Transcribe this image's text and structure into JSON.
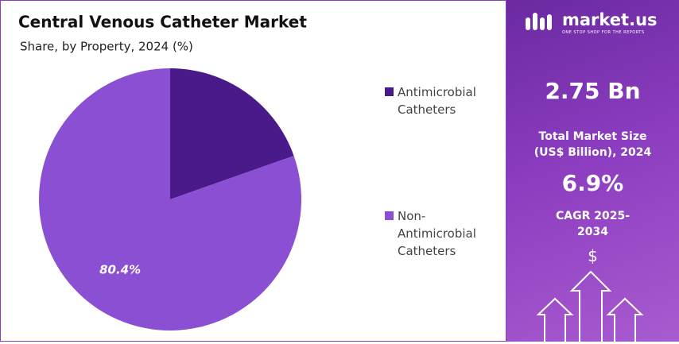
{
  "chart_data": {
    "type": "pie",
    "title": "Central Venous Catheter Market",
    "subtitle": "Share, by Property, 2024 (%)",
    "categories": [
      "Antimicrobial Catheters",
      "Non-Antimicrobial Catheters"
    ],
    "values": [
      19.6,
      80.4
    ],
    "value_labels": [
      null,
      "80.4%"
    ],
    "colors": [
      "#4b1a8a",
      "#8a4fd2"
    ]
  },
  "sidebar": {
    "brand": "market.us",
    "tagline": "ONE STOP SHOP FOR THE REPORTS",
    "market_size": "2.75 Bn",
    "market_size_label": "Total Market Size (US$ Billion), 2024",
    "cagr": "6.9%",
    "cagr_label": "CAGR 2025-2034",
    "currency": "$"
  }
}
